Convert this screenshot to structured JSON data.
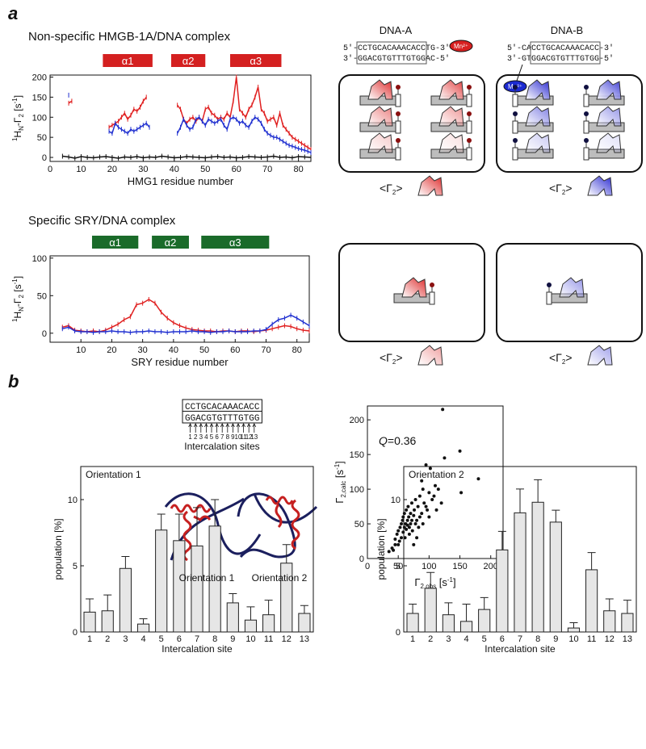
{
  "figure": {
    "panel_a": "a",
    "panel_b": "b"
  },
  "chart_data": [
    {
      "type": "line",
      "title": "Non-specific HMGB-1A/DNA complex",
      "helix_color": "#d42020",
      "helices": [
        {
          "label": "α1",
          "start": 17,
          "end": 33
        },
        {
          "label": "α2",
          "start": 39,
          "end": 50
        },
        {
          "label": "α3",
          "start": 58,
          "end": 74.5
        }
      ],
      "ylabel": [
        "1",
        "H",
        "N",
        "-Γ",
        "2",
        " [s",
        "-1",
        "]"
      ],
      "xlabel": "HMG1 residue number",
      "xlim": [
        0,
        84
      ],
      "ylim": [
        -10,
        205
      ],
      "xticks": [
        0,
        10,
        20,
        30,
        40,
        50,
        60,
        70,
        80
      ],
      "yticks": [
        0,
        50,
        100,
        150,
        200
      ],
      "series": [
        {
          "color": "#e02020",
          "x": [
            6,
            7,
            8,
            9,
            10,
            11,
            12,
            13,
            14,
            15,
            16,
            17,
            18,
            19,
            20,
            21,
            22,
            23,
            24,
            25,
            26,
            27,
            28,
            29,
            30,
            31,
            32,
            33,
            34,
            35,
            36,
            37,
            38,
            39,
            40,
            41,
            42,
            43,
            44,
            45,
            46,
            47,
            48,
            49,
            50,
            51,
            52,
            53,
            54,
            55,
            56,
            57,
            58,
            59,
            60,
            61,
            62,
            63,
            64,
            65,
            66,
            67,
            68,
            69,
            70,
            71,
            72,
            73,
            74,
            75,
            76,
            77,
            78,
            79,
            80,
            81,
            82,
            83,
            84
          ],
          "values": [
            135,
            140,
            null,
            null,
            null,
            null,
            null,
            null,
            null,
            null,
            null,
            null,
            null,
            75,
            80,
            85,
            90,
            100,
            110,
            95,
            105,
            120,
            115,
            125,
            140,
            150,
            null,
            null,
            null,
            null,
            null,
            null,
            null,
            null,
            null,
            130,
            120,
            95,
            85,
            95,
            100,
            90,
            100,
            90,
            120,
            125,
            110,
            105,
            95,
            100,
            95,
            110,
            100,
            140,
            200,
            120,
            110,
            100,
            120,
            130,
            150,
            175,
            120,
            110,
            90,
            95,
            100,
            80,
            110,
            80,
            70,
            60,
            50,
            45,
            40,
            35,
            30,
            25,
            20
          ]
        },
        {
          "color": "#2030d0",
          "x": [
            6,
            7,
            8,
            9,
            10,
            11,
            12,
            13,
            14,
            15,
            16,
            17,
            18,
            19,
            20,
            21,
            22,
            23,
            24,
            25,
            26,
            27,
            28,
            29,
            30,
            31,
            32,
            33,
            34,
            35,
            36,
            37,
            38,
            39,
            40,
            41,
            42,
            43,
            44,
            45,
            46,
            47,
            48,
            49,
            50,
            51,
            52,
            53,
            54,
            55,
            56,
            57,
            58,
            59,
            60,
            61,
            62,
            63,
            64,
            65,
            66,
            67,
            68,
            69,
            70,
            71,
            72,
            73,
            74,
            75,
            76,
            77,
            78,
            79,
            80,
            81,
            82,
            83,
            84
          ],
          "values": [
            155,
            null,
            null,
            null,
            null,
            null,
            null,
            null,
            null,
            null,
            null,
            null,
            null,
            65,
            60,
            85,
            75,
            70,
            65,
            60,
            70,
            65,
            70,
            75,
            80,
            85,
            75,
            null,
            null,
            null,
            null,
            null,
            null,
            null,
            null,
            60,
            75,
            95,
            80,
            70,
            75,
            95,
            100,
            90,
            80,
            95,
            90,
            85,
            90,
            95,
            80,
            70,
            95,
            100,
            95,
            85,
            90,
            80,
            75,
            90,
            100,
            95,
            85,
            70,
            60,
            55,
            50,
            50,
            45,
            40,
            35,
            30,
            28,
            25,
            22,
            20,
            18,
            15,
            12
          ]
        },
        {
          "color": "#111111",
          "x": [
            4,
            6,
            8,
            10,
            12,
            14,
            16,
            18,
            20,
            22,
            24,
            26,
            28,
            30,
            32,
            34,
            36,
            38,
            40,
            42,
            44,
            46,
            48,
            50,
            52,
            54,
            56,
            58,
            60,
            62,
            64,
            66,
            68,
            70,
            72,
            74,
            76,
            78,
            80,
            82,
            84
          ],
          "values": [
            3,
            1,
            -2,
            2,
            0,
            -1,
            1,
            2,
            0,
            -2,
            1,
            0,
            2,
            -1,
            1,
            0,
            3,
            1,
            -1,
            0,
            2,
            1,
            0,
            -1,
            1,
            2,
            0,
            1,
            -1,
            0,
            2,
            1,
            0,
            1,
            3,
            0,
            1,
            -1,
            2,
            1,
            0
          ]
        }
      ]
    },
    {
      "type": "line",
      "title": "Specific SRY/DNA complex",
      "helix_color": "#1a6b2a",
      "helices": [
        {
          "label": "α1",
          "start": 13.6,
          "end": 28.6
        },
        {
          "label": "α2",
          "start": 33,
          "end": 45
        },
        {
          "label": "α3",
          "start": 49,
          "end": 71
        }
      ],
      "ylabel": [
        "1",
        "H",
        "N",
        "-Γ",
        "2",
        " [s",
        "-1",
        "]"
      ],
      "xlabel": "SRY residue number",
      "xlim": [
        0,
        84
      ],
      "ylim": [
        -12,
        103
      ],
      "xticks": [
        10,
        20,
        30,
        40,
        50,
        60,
        70,
        80
      ],
      "yticks": [
        0,
        50,
        100
      ],
      "series": [
        {
          "color": "#e02020",
          "x": [
            4,
            6,
            8,
            10,
            12,
            14,
            16,
            18,
            20,
            22,
            24,
            26,
            28,
            30,
            32,
            34,
            36,
            38,
            40,
            42,
            44,
            46,
            48,
            50,
            52,
            54,
            56,
            58,
            60,
            62,
            64,
            66,
            68,
            70,
            72,
            74,
            76,
            78,
            80,
            82,
            84
          ],
          "values": [
            8,
            10,
            4,
            3,
            2,
            3,
            2,
            4,
            8,
            12,
            18,
            22,
            38,
            40,
            45,
            40,
            28,
            20,
            14,
            10,
            7,
            5,
            4,
            3,
            3,
            2,
            3,
            3,
            2,
            3,
            3,
            2,
            3,
            4,
            6,
            8,
            10,
            9,
            6,
            4,
            3
          ]
        },
        {
          "color": "#2030d0",
          "x": [
            4,
            6,
            8,
            10,
            12,
            14,
            16,
            18,
            20,
            22,
            24,
            26,
            28,
            30,
            32,
            34,
            36,
            38,
            40,
            42,
            44,
            46,
            48,
            50,
            52,
            54,
            56,
            58,
            60,
            62,
            64,
            66,
            68,
            70,
            72,
            74,
            76,
            78,
            80,
            82,
            84
          ],
          "values": [
            6,
            8,
            3,
            2,
            2,
            1,
            2,
            2,
            3,
            2,
            2,
            1,
            2,
            2,
            3,
            2,
            2,
            1,
            2,
            2,
            2,
            3,
            2,
            2,
            1,
            2,
            2,
            3,
            2,
            2,
            2,
            3,
            3,
            5,
            12,
            18,
            20,
            24,
            20,
            15,
            10
          ]
        }
      ]
    },
    {
      "type": "scatter",
      "annotation": [
        "Q",
        "=0.36"
      ],
      "xlabel": [
        "Γ",
        "2,obs",
        " [s",
        "-1",
        "]"
      ],
      "ylabel": [
        "Γ",
        "2,calc",
        " [s",
        "-1",
        "]"
      ],
      "xlim": [
        0,
        220
      ],
      "ylim": [
        0,
        220
      ],
      "xticks": [
        0,
        50,
        100,
        150,
        200
      ],
      "yticks": [
        0,
        50,
        100,
        150,
        200
      ],
      "color": "#111111",
      "x": [
        35,
        40,
        42,
        45,
        45,
        48,
        50,
        50,
        52,
        53,
        55,
        55,
        57,
        58,
        58,
        60,
        60,
        61,
        62,
        63,
        63,
        65,
        65,
        66,
        67,
        68,
        68,
        70,
        70,
        72,
        72,
        73,
        75,
        75,
        76,
        78,
        78,
        80,
        80,
        82,
        83,
        85,
        85,
        88,
        88,
        90,
        90,
        92,
        95,
        95,
        97,
        100,
        100,
        102,
        105,
        108,
        110,
        112,
        115,
        120,
        122,
        125,
        150,
        152,
        180
      ],
      "values": [
        10,
        15,
        12,
        20,
        28,
        35,
        40,
        20,
        25,
        45,
        50,
        30,
        55,
        38,
        60,
        45,
        65,
        30,
        50,
        42,
        70,
        55,
        48,
        75,
        60,
        45,
        35,
        50,
        65,
        55,
        80,
        40,
        62,
        20,
        70,
        85,
        50,
        55,
        30,
        75,
        45,
        60,
        90,
        65,
        112,
        100,
        50,
        80,
        135,
        75,
        70,
        95,
        60,
        130,
        85,
        90,
        105,
        70,
        100,
        80,
        215,
        145,
        155,
        95,
        115
      ]
    },
    {
      "type": "bar",
      "title": "Orientation 1",
      "xlabel": "Intercalation site",
      "ylabel": "population [%]",
      "categories": [
        "1",
        "2",
        "3",
        "4",
        "5",
        "6",
        "7",
        "8",
        "9",
        "10",
        "11",
        "12",
        "13"
      ],
      "values": [
        1.5,
        1.6,
        4.8,
        0.6,
        7.7,
        6.9,
        6.5,
        8.0,
        2.2,
        0.9,
        1.3,
        5.2,
        1.4
      ],
      "errors": [
        1.0,
        1.2,
        0.9,
        0.4,
        1.2,
        2.0,
        2.9,
        2.0,
        0.7,
        1.0,
        1.1,
        1.4,
        0.6
      ],
      "color": "#e6e6e6",
      "ylim": [
        0,
        12.5
      ],
      "yticks": [
        0,
        5,
        10
      ]
    },
    {
      "type": "bar",
      "title": "Orientation 2",
      "xlabel": "Intercalation site",
      "ylabel": "population [%]",
      "categories": [
        "1",
        "2",
        "3",
        "4",
        "5",
        "6",
        "7",
        "8",
        "9",
        "10",
        "11",
        "12",
        "13"
      ],
      "values": [
        1.4,
        3.3,
        1.3,
        0.8,
        1.7,
        6.2,
        9.0,
        9.8,
        8.3,
        0.3,
        4.7,
        1.6,
        1.4
      ],
      "errors": [
        0.7,
        1.2,
        0.9,
        1.3,
        0.9,
        1.4,
        1.8,
        1.7,
        0.9,
        0.4,
        1.3,
        0.9,
        1.0
      ],
      "color": "#e6e6e6",
      "ylim": [
        0,
        12.5
      ],
      "yticks": [
        0,
        5,
        10
      ]
    }
  ],
  "diagram": {
    "dna_a": {
      "title": "DNA-A",
      "strand_top": "5'-CCTGCACAAACACCTG-3'",
      "strand_bottom": "3'-GGACGTGTTTGTGGAC-5'",
      "label": "Mn²⁺"
    },
    "dna_b": {
      "title": "DNA-B",
      "strand_top": "5'-CACCTGCACAAACACC-3'",
      "strand_bottom": "3'-GTGGACGTGTTTGTGG-5'",
      "label": "Mn²⁺"
    },
    "gamma_labels": [
      [
        "<Γ",
        "2",
        ">"
      ],
      [
        "<Γ",
        "2",
        ">"
      ],
      [
        "<Γ",
        "2",
        ">"
      ],
      [
        "<Γ",
        "2",
        ">"
      ]
    ]
  },
  "intercalation": {
    "top": "CCTGCACAAACACC",
    "bottom": "GGACGTGTTTGTGG",
    "sites": [
      "1",
      "2",
      "3",
      "4",
      "5",
      "6",
      "7",
      "8",
      "9",
      "10",
      "11",
      "12",
      "13"
    ],
    "caption": "Intercalation sites",
    "orientations": [
      "Orientation 1",
      "Orientation 2"
    ]
  }
}
